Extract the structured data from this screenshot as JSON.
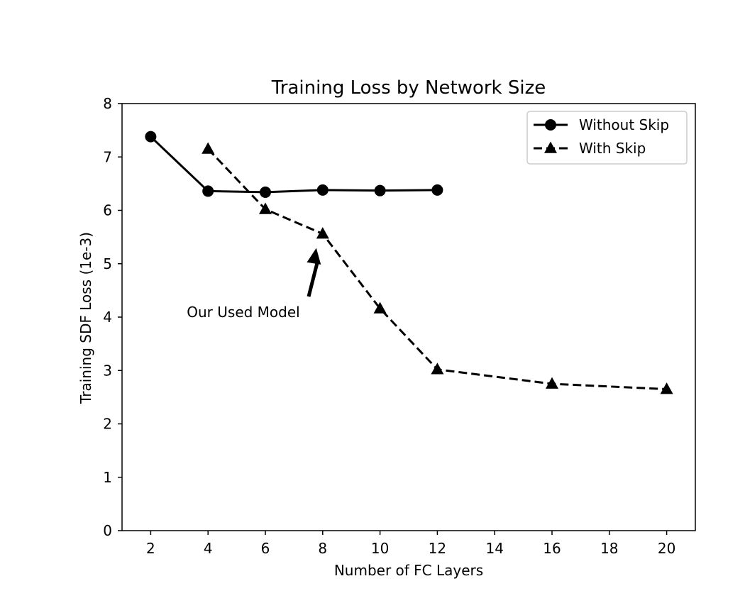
{
  "chart_data": {
    "type": "line",
    "title": "Training Loss by Network Size",
    "xlabel": "Number of FC Layers",
    "ylabel": "Training SDF Loss (1e-3)",
    "xlim": [
      1,
      21
    ],
    "ylim": [
      0,
      8
    ],
    "xticks": [
      2,
      4,
      6,
      8,
      10,
      12,
      14,
      16,
      18,
      20
    ],
    "yticks": [
      0,
      1,
      2,
      3,
      4,
      5,
      6,
      7,
      8
    ],
    "grid": false,
    "legend_position": "top-right",
    "series": [
      {
        "name": "Without Skip",
        "marker": "circle",
        "line_style": "solid",
        "color": "#000000",
        "x": [
          2,
          4,
          6,
          8,
          10,
          12
        ],
        "y": [
          7.38,
          6.36,
          6.34,
          6.38,
          6.37,
          6.38
        ]
      },
      {
        "name": "With Skip",
        "marker": "triangle",
        "line_style": "dashed",
        "color": "#000000",
        "x": [
          4,
          6,
          8,
          10,
          12,
          16,
          20
        ],
        "y": [
          7.15,
          6.02,
          5.56,
          4.16,
          3.02,
          2.75,
          2.65
        ]
      }
    ],
    "annotations": [
      {
        "text": "Our Used Model",
        "points_to": {
          "x": 8,
          "y": 5.56
        }
      }
    ]
  }
}
